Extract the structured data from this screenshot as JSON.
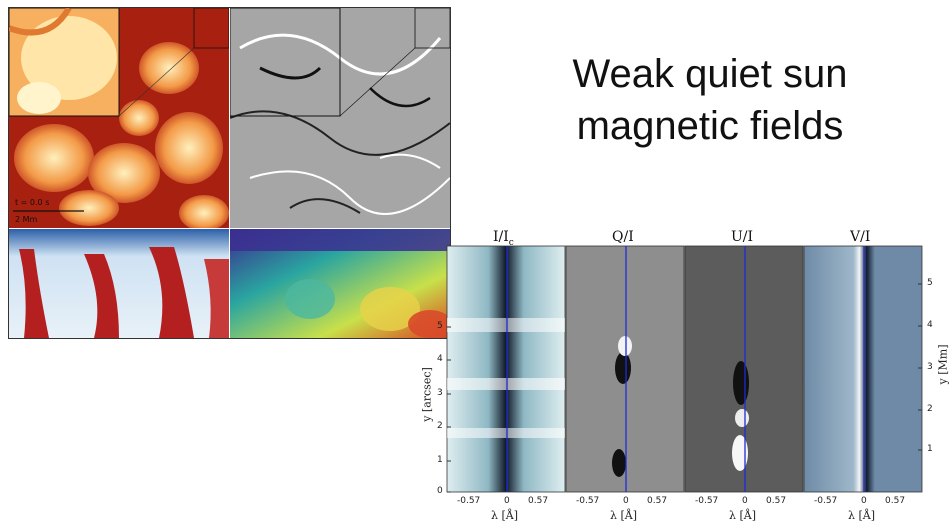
{
  "slide": {
    "title_line1": "Weak quiet sun",
    "title_line2": "magnetic fields"
  },
  "simulation_image": {
    "scale_label_1": "t = 0.0 s",
    "scale_label_2": "2 Mm",
    "colors": {
      "intensity": [
        "#fff3c2",
        "#f6a04a",
        "#c0301a",
        "#7a0b0b"
      ],
      "magnetogram": [
        "#ffffff",
        "#9a9a9a",
        "#111111"
      ],
      "vertical_red_blue": [
        "#2b5fa8",
        "#dbe9f5",
        "#b42020"
      ],
      "spectral": [
        "#3a2a8f",
        "#2aa5a0",
        "#c8e04a",
        "#d94020"
      ]
    }
  },
  "stokes_figure": {
    "panel_labels": [
      "I/I",
      "Q/I",
      "U/I",
      "V/I"
    ],
    "panel_label_subscript": "c",
    "x_ticks": [
      "-0.57",
      "0",
      "0.57"
    ],
    "x_axis_title": "λ [Å]",
    "y_ticks_left": [
      "0",
      "1",
      "2",
      "3",
      "4",
      "5"
    ],
    "y_axis_title_left": "y [arcsec]",
    "y_ticks_right": [
      "1",
      "2",
      "3",
      "4",
      "5"
    ],
    "y_axis_title_right": "y [Mm]",
    "line_color": "#1f2bd6"
  }
}
